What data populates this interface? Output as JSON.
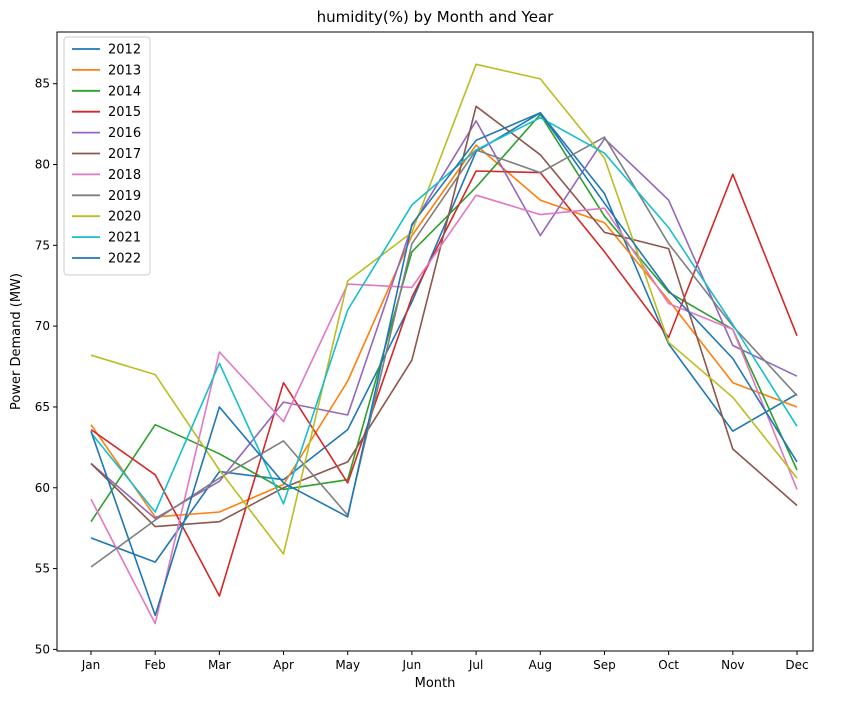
{
  "chart_data": {
    "type": "line",
    "title": "humidity(%) by Month and Year",
    "xlabel": "Month",
    "ylabel": "Power Demand (MW)",
    "categories": [
      "Jan",
      "Feb",
      "Mar",
      "Apr",
      "May",
      "Jun",
      "Jul",
      "Aug",
      "Sep",
      "Oct",
      "Nov",
      "Dec"
    ],
    "ylim": [
      49.9,
      88.2
    ],
    "yticks": [
      50,
      55,
      60,
      65,
      70,
      75,
      80,
      85
    ],
    "grid": false,
    "legend": "top-left",
    "series": [
      {
        "name": "2012",
        "color": "#1f77b4",
        "values": [
          56.9,
          55.4,
          61.0,
          60.5,
          63.6,
          71.5,
          80.8,
          83.2,
          78.2,
          68.9,
          63.5,
          65.8
        ]
      },
      {
        "name": "2013",
        "color": "#ff7f0e",
        "values": [
          63.9,
          58.2,
          58.5,
          60.2,
          66.6,
          75.6,
          81.2,
          77.8,
          76.4,
          71.6,
          66.5,
          65.0
        ]
      },
      {
        "name": "2014",
        "color": "#2ca02c",
        "values": [
          57.9,
          63.9,
          62.1,
          59.9,
          60.5,
          74.6,
          78.6,
          83.1,
          76.8,
          72.1,
          69.8,
          61.1
        ]
      },
      {
        "name": "2015",
        "color": "#d62728",
        "values": [
          63.6,
          60.8,
          53.3,
          66.5,
          60.3,
          71.8,
          79.6,
          79.5,
          74.6,
          69.3,
          79.4,
          69.4
        ]
      },
      {
        "name": "2016",
        "color": "#9467bd",
        "values": [
          61.5,
          58.1,
          60.4,
          65.3,
          64.5,
          76.2,
          82.7,
          75.6,
          81.6,
          77.8,
          68.8,
          66.9
        ]
      },
      {
        "name": "2017",
        "color": "#8c564b",
        "values": [
          61.5,
          57.6,
          57.9,
          60.0,
          61.6,
          67.9,
          83.6,
          80.6,
          75.8,
          74.8,
          62.4,
          58.9
        ]
      },
      {
        "name": "2018",
        "color": "#e377c2",
        "values": [
          59.3,
          51.6,
          68.4,
          64.1,
          72.6,
          72.4,
          78.1,
          76.9,
          77.3,
          71.4,
          69.8,
          59.9
        ]
      },
      {
        "name": "2019",
        "color": "#7f7f7f",
        "values": [
          55.1,
          58.0,
          60.6,
          62.9,
          58.3,
          75.1,
          80.9,
          79.5,
          81.7,
          75.1,
          70.0,
          65.7
        ]
      },
      {
        "name": "2020",
        "color": "#bcbd22",
        "values": [
          68.2,
          67.0,
          61.1,
          55.9,
          72.8,
          75.8,
          86.2,
          85.3,
          80.4,
          69.0,
          65.6,
          60.6
        ]
      },
      {
        "name": "2021",
        "color": "#17becf",
        "values": [
          63.4,
          58.5,
          67.7,
          59.0,
          71.0,
          77.5,
          80.9,
          82.9,
          80.7,
          76.1,
          70.1,
          63.8
        ]
      },
      {
        "name": "2022",
        "color": "#1f77b4",
        "values": [
          63.5,
          52.1,
          65.0,
          60.3,
          58.2,
          76.3,
          81.5,
          83.2,
          77.6,
          72.2,
          68.0,
          61.6
        ]
      }
    ]
  }
}
